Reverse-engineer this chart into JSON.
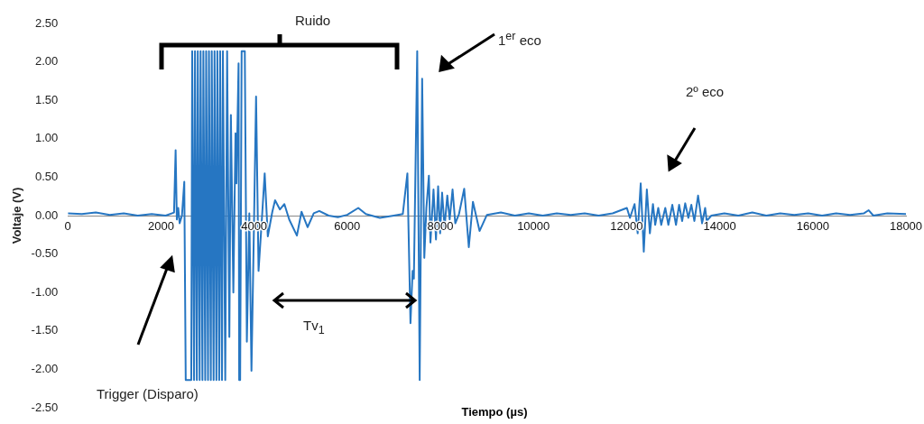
{
  "chart_data": {
    "type": "line",
    "xlabel": "Tiempo (µs)",
    "ylabel": "Voltaje (V)",
    "annotations": [
      "Ruido",
      "1$^{er}$ eco",
      "2º eco",
      "Tv$_{1}$",
      "Trigger (Disparo)"
    ],
    "xlim": [
      0,
      18000
    ],
    "xticks": [
      0,
      2000,
      4000,
      6000,
      8000,
      10000,
      12000,
      14000,
      16000,
      18000
    ],
    "ylim": [
      -2.5,
      2.5
    ],
    "yticks": [
      {
        "value": -2.5,
        "label": "-2.50"
      },
      {
        "value": -2,
        "label": "-2.00"
      },
      {
        "value": -1.5,
        "label": "-1.50"
      },
      {
        "value": -1,
        "label": "-1.00"
      },
      {
        "value": -0.5,
        "label": "-0.50"
      },
      {
        "value": 0,
        "label": "0.00"
      },
      {
        "value": 0.5,
        "label": "0.50"
      },
      {
        "value": 1,
        "label": "1.00"
      },
      {
        "value": 1.5,
        "label": "1.50"
      },
      {
        "value": 2,
        "label": "2.00"
      },
      {
        "value": 2.5,
        "label": "2.50"
      }
    ],
    "grid": false,
    "legend": false,
    "marker": "none",
    "line_style": "solid",
    "series": [
      {
        "color": "#2676c2",
        "x": [
          0,
          300,
          600,
          900,
          1200,
          1500,
          1800,
          2100,
          2280,
          2314,
          2340,
          2370,
          2400,
          2450,
          2500,
          2531,
          2650,
          2670,
          2710,
          2730,
          2770,
          2790,
          2830,
          2850,
          2890,
          2910,
          2950,
          2970,
          3010,
          3030,
          3070,
          3090,
          3130,
          3150,
          3190,
          3210,
          3250,
          3270,
          3310,
          3330,
          3380,
          3420,
          3468,
          3501,
          3554,
          3600,
          3620,
          3666,
          3679,
          3700,
          3732,
          3800,
          3844,
          3897,
          3943,
          3996,
          4042,
          4095,
          4161,
          4227,
          4294,
          4391,
          4450,
          4555,
          4650,
          4753,
          4919,
          5018,
          5149,
          5281,
          5400,
          5600,
          5800,
          6000,
          6237,
          6400,
          6700,
          7000,
          7193,
          7292,
          7358,
          7404,
          7431,
          7503,
          7556,
          7609,
          7655,
          7700,
          7754,
          7787,
          7853,
          7906,
          7952,
          7995,
          8037,
          8090,
          8149,
          8200,
          8262,
          8320,
          8400,
          8512,
          8611,
          8700,
          8842,
          9000,
          9300,
          9600,
          9900,
          10200,
          10500,
          10800,
          11100,
          11400,
          11700,
          12006,
          12072,
          12171,
          12238,
          12303,
          12369,
          12435,
          12500,
          12566,
          12614,
          12680,
          12744,
          12831,
          12897,
          12982,
          13061,
          13128,
          13193,
          13259,
          13326,
          13391,
          13456,
          13535,
          13622,
          13687,
          13721,
          13820,
          14100,
          14400,
          14700,
          15000,
          15300,
          15600,
          15900,
          16200,
          16500,
          16800,
          17100,
          17200,
          17300,
          17600,
          18000
        ],
        "values": [
          0.03,
          0.02,
          0.04,
          0.01,
          0.03,
          0.0,
          0.02,
          0.0,
          0.04,
          0.85,
          -0.05,
          0.1,
          -0.1,
          0.0,
          0.44,
          -2.14,
          -2.14,
          2.14,
          -2.14,
          2.14,
          -2.14,
          2.14,
          -2.14,
          2.14,
          -2.14,
          2.14,
          -2.14,
          2.14,
          -2.14,
          2.14,
          -2.14,
          2.14,
          -2.14,
          2.14,
          -2.14,
          2.14,
          -2.14,
          2.14,
          -2.14,
          2.14,
          -2.14,
          2.14,
          -1.58,
          1.31,
          -1.0,
          1.07,
          0.42,
          1.98,
          -2.14,
          -2.14,
          2.14,
          2.14,
          -1.64,
          0.03,
          -2.02,
          -0.15,
          1.55,
          -0.72,
          -0.1,
          0.55,
          -0.27,
          0.05,
          0.2,
          0.08,
          0.15,
          -0.05,
          -0.26,
          0.05,
          -0.15,
          0.03,
          0.06,
          0.0,
          -0.02,
          0.01,
          0.1,
          0.02,
          -0.03,
          0.0,
          0.02,
          0.55,
          -1.4,
          -0.72,
          -0.82,
          2.14,
          -2.14,
          1.78,
          -0.55,
          0.1,
          0.52,
          -0.35,
          0.34,
          -0.31,
          0.38,
          -0.23,
          0.3,
          -0.15,
          0.26,
          -0.05,
          0.34,
          -0.1,
          0.02,
          0.35,
          -0.41,
          0.18,
          -0.2,
          0.01,
          0.04,
          0.0,
          0.03,
          0.0,
          0.03,
          0.01,
          0.03,
          0.0,
          0.03,
          0.1,
          -0.03,
          0.15,
          -0.23,
          0.42,
          -0.47,
          0.34,
          -0.23,
          0.15,
          -0.12,
          0.1,
          -0.12,
          0.1,
          -0.12,
          0.14,
          -0.12,
          0.14,
          -0.07,
          0.16,
          -0.03,
          0.14,
          -0.07,
          0.26,
          -0.1,
          0.1,
          -0.07,
          0.0,
          0.03,
          0.0,
          0.04,
          0.0,
          0.03,
          0.01,
          0.03,
          0.0,
          0.03,
          0.01,
          0.03,
          0.07,
          0.0,
          0.03,
          0.02
        ]
      }
    ]
  }
}
